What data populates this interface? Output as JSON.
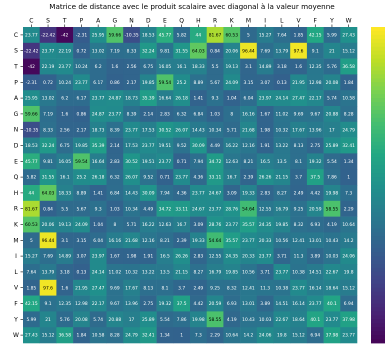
{
  "chart_data": {
    "type": "heatmap",
    "title": "Matrice de distance avec le produit scalaire avec diagonal à la valeur moyenne",
    "xlabels": [
      "C",
      "S",
      "T",
      "P",
      "A",
      "G",
      "N",
      "D",
      "E",
      "Q",
      "H",
      "R",
      "K",
      "M",
      "I",
      "L",
      "V",
      "F",
      "Y",
      "W"
    ],
    "ylabels": [
      "C",
      "S",
      "T",
      "P",
      "A",
      "G",
      "N",
      "D",
      "E",
      "Q",
      "H",
      "R",
      "K",
      "M",
      "I",
      "L",
      "V",
      "F",
      "Y",
      "W"
    ],
    "values": [
      [
        23.77,
        -22.42,
        -42.0,
        -2.31,
        25.95,
        59.66,
        -10.35,
        18.53,
        45.77,
        5.82,
        44.0,
        81.67,
        60.53,
        5.0,
        15.27,
        7.64,
        1.85,
        42.15,
        5.99,
        27.43
      ],
      [
        -22.42,
        23.77,
        22.19,
        0.72,
        13.02,
        7.19,
        8.33,
        32.24,
        9.81,
        31.55,
        64.03,
        0.84,
        20.06,
        96.44,
        7.69,
        13.79,
        97.6,
        9.1,
        21.0,
        15.12
      ],
      [
        -42.0,
        22.19,
        23.77,
        10.24,
        6.2,
        1.6,
        2.56,
        6.75,
        16.05,
        16.1,
        18.33,
        5.5,
        19.13,
        3.1,
        14.89,
        3.18,
        1.6,
        12.35,
        5.76,
        36.58
      ],
      [
        -2.31,
        0.72,
        10.24,
        23.77,
        6.17,
        0.86,
        2.17,
        19.85,
        59.54,
        25.2,
        8.89,
        5.67,
        24.09,
        3.15,
        3.07,
        0.13,
        21.95,
        12.98,
        20.08,
        1.84
      ],
      [
        25.95,
        13.02,
        6.2,
        6.17,
        23.77,
        24.87,
        18.73,
        35.39,
        16.64,
        26.18,
        1.41,
        9.3,
        1.04,
        6.04,
        23.97,
        24.14,
        27.47,
        22.17,
        5.74,
        10.58
      ],
      [
        59.66,
        7.19,
        1.6,
        0.86,
        24.87,
        23.77,
        8.39,
        2.14,
        2.83,
        6.32,
        6.84,
        1.03,
        8.0,
        16.16,
        1.67,
        11.02,
        9.69,
        9.67,
        20.88,
        8.28
      ],
      [
        -10.35,
        8.33,
        2.56,
        2.17,
        18.73,
        8.39,
        23.77,
        17.53,
        30.52,
        26.07,
        14.43,
        10.34,
        5.71,
        21.68,
        1.98,
        10.32,
        17.67,
        13.96,
        17.0,
        24.79
      ],
      [
        18.53,
        32.24,
        6.75,
        19.85,
        35.39,
        2.14,
        17.53,
        23.77,
        19.51,
        9.52,
        30.09,
        4.49,
        16.22,
        12.16,
        1.91,
        13.22,
        8.13,
        2.75,
        25.89,
        32.41
      ],
      [
        45.77,
        9.81,
        16.05,
        59.54,
        16.64,
        2.83,
        30.52,
        19.51,
        23.77,
        0.71,
        7.94,
        34.72,
        12.63,
        8.21,
        16.5,
        13.5,
        8.1,
        19.32,
        5.54,
        1.34
      ],
      [
        5.82,
        31.55,
        16.1,
        25.2,
        26.18,
        6.32,
        26.07,
        9.52,
        0.71,
        23.77,
        4.36,
        33.11,
        16.7,
        2.39,
        26.26,
        21.15,
        3.7,
        37.5,
        7.86,
        1.0
      ],
      [
        44.0,
        64.03,
        18.33,
        8.89,
        1.41,
        6.84,
        14.43,
        30.09,
        7.94,
        4.36,
        23.77,
        24.67,
        3.09,
        19.33,
        2.83,
        8.27,
        2.49,
        4.42,
        19.98,
        7.3
      ],
      [
        81.67,
        0.84,
        5.5,
        5.67,
        9.3,
        1.03,
        10.34,
        4.49,
        34.72,
        33.11,
        24.67,
        23.77,
        28.76,
        54.64,
        12.55,
        16.79,
        9.25,
        20.59,
        58.55,
        2.29
      ],
      [
        60.53,
        20.06,
        19.13,
        24.09,
        1.04,
        8.0,
        5.71,
        16.22,
        12.63,
        16.7,
        3.09,
        28.76,
        23.77,
        35.57,
        24.35,
        19.85,
        8.32,
        6.93,
        4.19,
        10.64
      ],
      [
        5.0,
        96.44,
        3.1,
        3.15,
        6.04,
        16.16,
        21.68,
        12.16,
        8.21,
        2.39,
        19.33,
        54.64,
        35.57,
        23.77,
        20.33,
        10.56,
        12.41,
        13.01,
        10.43,
        14.2
      ],
      [
        15.27,
        7.69,
        14.89,
        3.07,
        23.97,
        1.67,
        1.98,
        1.91,
        16.5,
        26.26,
        2.83,
        12.55,
        24.35,
        20.33,
        23.77,
        3.71,
        11.3,
        3.89,
        10.03,
        24.06
      ],
      [
        7.64,
        13.79,
        3.18,
        0.13,
        24.14,
        11.02,
        10.32,
        13.22,
        13.5,
        21.15,
        8.27,
        16.79,
        19.85,
        10.56,
        3.71,
        23.77,
        10.38,
        14.51,
        22.67,
        19.8
      ],
      [
        1.85,
        97.6,
        1.6,
        21.95,
        27.47,
        9.69,
        17.67,
        8.13,
        8.1,
        3.7,
        2.49,
        9.25,
        8.32,
        12.41,
        11.3,
        10.38,
        23.77,
        16.14,
        18.64,
        15.12
      ],
      [
        42.15,
        9.1,
        12.35,
        12.98,
        22.17,
        9.67,
        13.96,
        2.75,
        19.32,
        37.5,
        4.42,
        20.59,
        6.93,
        13.01,
        3.89,
        14.51,
        16.14,
        23.77,
        40.1,
        6.94
      ],
      [
        5.99,
        21.0,
        5.76,
        20.08,
        5.74,
        20.88,
        17.0,
        25.89,
        5.54,
        7.86,
        19.98,
        58.55,
        4.19,
        10.43,
        10.03,
        22.67,
        18.64,
        40.1,
        23.77,
        37.98
      ],
      [
        27.43,
        15.12,
        36.58,
        1.84,
        10.58,
        8.28,
        24.79,
        32.41,
        1.34,
        1.0,
        7.3,
        2.29,
        10.64,
        14.2,
        24.06,
        19.8,
        15.12,
        6.94,
        37.98,
        23.77
      ]
    ],
    "vmin": -45,
    "vmax": 100,
    "colormap": "viridis",
    "colorbar": true,
    "grid": false
  }
}
